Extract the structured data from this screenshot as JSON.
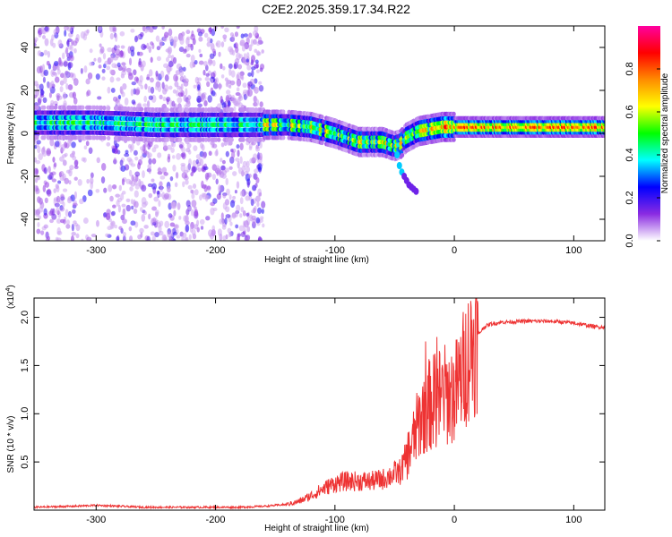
{
  "title": "C2E2.2025.359.17.34.R22",
  "chart_data": [
    {
      "type": "heatmap",
      "xlabel": "Height of straight line (km)",
      "ylabel": "Frequency (Hz)",
      "xlim": [
        -352,
        126
      ],
      "ylim": [
        -50,
        50
      ],
      "x_ticks": [
        -300,
        -200,
        -100,
        0,
        100
      ],
      "x_tick_labels": [
        "-300",
        "-200",
        "-100",
        "0",
        "100"
      ],
      "y_ticks": [
        -40,
        -20,
        0,
        20,
        40
      ],
      "y_tick_labels": [
        "-40",
        "-20",
        "0",
        "20",
        "40"
      ],
      "colorbar": {
        "label": "Normalized spectral amplitude",
        "range": [
          0,
          1
        ],
        "ticks": [
          0.0,
          0.2,
          0.4,
          0.6,
          0.8
        ],
        "tick_labels": [
          "0.0",
          "0.2",
          "0.4",
          "0.6",
          "0.8"
        ],
        "colormap": [
          "#ffffff",
          "#8a2be2",
          "#0000ff",
          "#00ffff",
          "#00ff00",
          "#ffff00",
          "#ff8c00",
          "#ff0000",
          "#ff00a0"
        ]
      },
      "ridge_centerline": {
        "x": [
          -350,
          -300,
          -250,
          -200,
          -160,
          -140,
          -120,
          -100,
          -90,
          -80,
          -70,
          -60,
          -50,
          -45,
          -40,
          -30,
          -20,
          -10,
          0,
          20,
          40,
          60,
          80,
          100,
          120
        ],
        "frequency": [
          5,
          5,
          4,
          4,
          4,
          4,
          3,
          0,
          -2,
          -4,
          -4,
          -4,
          -6,
          -5,
          -2,
          1,
          2,
          3,
          3,
          3,
          3,
          3,
          3,
          3,
          3
        ]
      },
      "scattered_noise_region": [
        -352,
        -160
      ],
      "side_branch": {
        "x": [
          -48,
          -46,
          -44,
          -42,
          -40,
          -38,
          -36,
          -34,
          -32
        ],
        "frequency": [
          -10,
          -15,
          -18,
          -20,
          -22,
          -24,
          -25,
          -26,
          -27
        ]
      }
    },
    {
      "type": "line",
      "xlabel": "Height of straight line (km)",
      "ylabel": "SNR (10 * v/v)",
      "y_multiplier_label": "(x10",
      "y_multiplier_exponent": "4",
      "y_multiplier_close": ")",
      "xlim": [
        -352,
        126
      ],
      "ylim": [
        0,
        2.2
      ],
      "x_ticks": [
        -300,
        -200,
        -100,
        0,
        100
      ],
      "x_tick_labels": [
        "-300",
        "-200",
        "-100",
        "0",
        "100"
      ],
      "y_ticks": [
        0.5,
        1.0,
        1.5,
        2.0
      ],
      "y_tick_labels": [
        "0.5",
        "1.0",
        "1.5",
        "2.0"
      ],
      "color": "#ee3333",
      "series": [
        {
          "x": [
            -352,
            -320,
            -300,
            -280,
            -260,
            -240,
            -220,
            -200,
            -180,
            -160,
            -140,
            -130,
            -120,
            -110,
            -100,
            -90,
            -80,
            -70,
            -60,
            -50,
            -45,
            -40,
            -35,
            -30,
            -25,
            -20,
            -15,
            -10,
            -5,
            0,
            5,
            10,
            15,
            20,
            25,
            30,
            40,
            60,
            80,
            100,
            110,
            120,
            126
          ],
          "values": [
            0.03,
            0.04,
            0.05,
            0.04,
            0.03,
            0.03,
            0.03,
            0.03,
            0.03,
            0.04,
            0.06,
            0.09,
            0.15,
            0.22,
            0.28,
            0.3,
            0.3,
            0.3,
            0.32,
            0.38,
            0.4,
            0.55,
            0.7,
            0.9,
            1.05,
            1.1,
            1.15,
            1.2,
            1.2,
            1.2,
            1.35,
            1.55,
            1.7,
            1.82,
            1.9,
            1.93,
            1.95,
            1.96,
            1.96,
            1.94,
            1.92,
            1.9,
            1.9
          ]
        }
      ]
    }
  ]
}
